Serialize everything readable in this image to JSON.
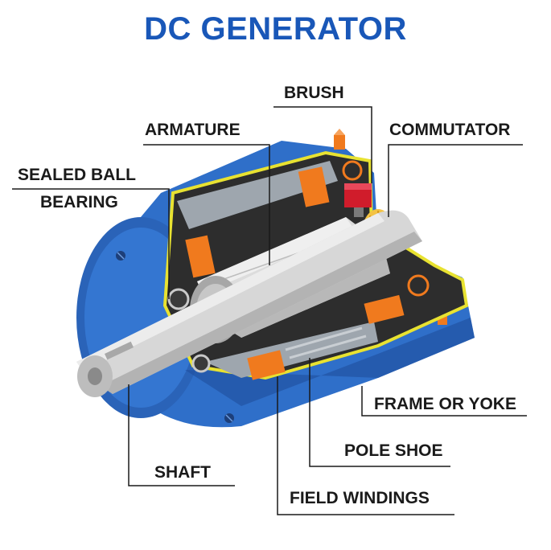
{
  "title": "DC GENERATOR",
  "labels": {
    "brush": "BRUSH",
    "armature": "ARMATURE",
    "commutator": "COMMUTATOR",
    "sealed_ball": "SEALED BALL",
    "bearing": "BEARING",
    "frame_or_yoke": "FRAME OR YOKE",
    "pole_shoe": "POLE SHOE",
    "shaft": "SHAFT",
    "field_windings": "FIELD WINDINGS"
  },
  "colors": {
    "title": "#1957b8",
    "frame_blue": "#2f6fc9",
    "frame_dark": "#1f4f9c",
    "yellow_trim": "#e8e231",
    "winding_orange": "#f07a1e",
    "brush_red": "#d01c2b",
    "shaft_gray": "#d7d7d7"
  }
}
